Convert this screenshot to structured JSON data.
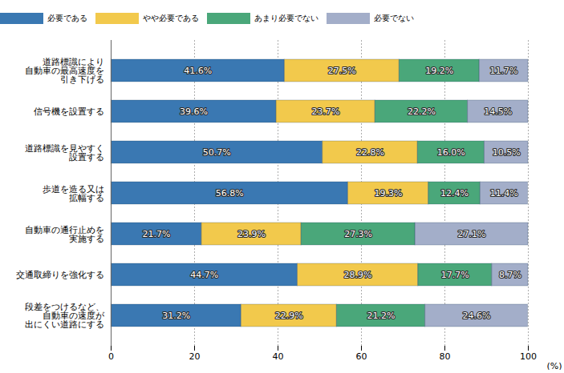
{
  "chart_data": {
    "type": "bar",
    "orientation": "horizontal",
    "stacked": true,
    "data_labels": true,
    "grid": true,
    "legend": "top",
    "xlabel": "(%)",
    "xlim": [
      0,
      100
    ],
    "xticks": [
      0,
      20,
      40,
      60,
      80,
      100
    ],
    "categories": [
      "道路標識により\n自動車の最高速度を\n引き下げる",
      "信号機を設置する",
      "道路標識を見やすく\n設置する",
      "歩道を造る又は\n拡幅する",
      "自動車の通行止めを\n実施する",
      "交通取締りを強化する",
      "段差をつけるなど、\n自動車の速度が\n出にくい道路にする"
    ],
    "series": [
      {
        "name": "必要である",
        "color": "#3a78b2",
        "values": [
          41.6,
          39.6,
          50.7,
          56.8,
          21.7,
          44.7,
          31.2
        ],
        "value_labels": [
          "41.6%",
          "39.6%",
          "50.7%",
          "56.8%",
          "21.7%",
          "44.7%",
          "31.2%"
        ]
      },
      {
        "name": "やや必要である",
        "color": "#f2c94c",
        "values": [
          27.5,
          23.7,
          22.8,
          19.3,
          23.9,
          28.9,
          22.9
        ],
        "value_labels": [
          "27.5%",
          "23.7%",
          "22.8%",
          "19.3%",
          "23.9%",
          "28.9%",
          "22.9%"
        ]
      },
      {
        "name": "あまり必要でない",
        "color": "#4aa77a",
        "values": [
          19.2,
          22.2,
          16.0,
          12.4,
          27.3,
          17.7,
          21.2
        ],
        "value_labels": [
          "19.2%",
          "22.2%",
          "16.0%",
          "12.4%",
          "27.3%",
          "17.7%",
          "21.2%"
        ]
      },
      {
        "name": "必要でない",
        "color": "#a3aec9",
        "values": [
          11.7,
          14.5,
          10.5,
          11.4,
          27.1,
          8.7,
          24.6
        ],
        "value_labels": [
          "11.7%",
          "14.5%",
          "10.5%",
          "11.4%",
          "27.1%",
          "8.7%",
          "24.6%"
        ]
      }
    ]
  }
}
